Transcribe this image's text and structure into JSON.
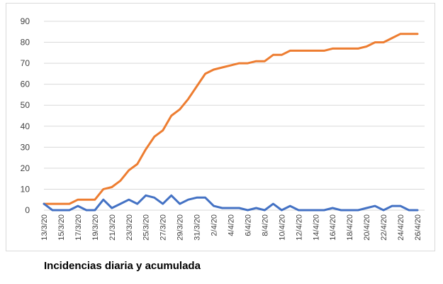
{
  "caption": "Incidencias diaria y acumulada",
  "chart_data": {
    "type": "line",
    "x": [
      "13/3/20",
      "14/3/20",
      "15/3/20",
      "16/3/20",
      "17/3/20",
      "18/3/20",
      "19/3/20",
      "20/3/20",
      "21/3/20",
      "22/3/20",
      "23/3/20",
      "24/3/20",
      "25/3/20",
      "26/3/20",
      "27/3/20",
      "28/3/20",
      "29/3/20",
      "30/3/20",
      "31/3/20",
      "1/4/20",
      "2/4/20",
      "3/4/20",
      "4/4/20",
      "5/4/20",
      "6/4/20",
      "7/4/20",
      "8/4/20",
      "9/4/20",
      "10/4/20",
      "11/4/20",
      "12/4/20",
      "13/4/20",
      "14/4/20",
      "15/4/20",
      "16/4/20",
      "17/4/20",
      "18/4/20",
      "19/4/20",
      "20/4/20",
      "21/4/20",
      "22/4/20",
      "23/4/20",
      "24/4/20",
      "25/4/20",
      "26/4/20"
    ],
    "tick_labels": [
      "13/3/20",
      "15/3/20",
      "17/3/20",
      "19/3/20",
      "21/3/20",
      "23/3/20",
      "25/3/20",
      "27/3/20",
      "29/3/20",
      "31/3/20",
      "2/4/20",
      "4/4/20",
      "6/4/20",
      "8/4/20",
      "10/4/20",
      "12/4/20",
      "14/4/20",
      "16/4/20",
      "18/4/20",
      "20/4/20",
      "22/4/20",
      "24/4/20",
      "26/4/20"
    ],
    "series": [
      {
        "color": "#ed7d31",
        "values": [
          3,
          3,
          3,
          3,
          5,
          5,
          5,
          10,
          11,
          14,
          19,
          22,
          29,
          35,
          38,
          45,
          48,
          53,
          59,
          65,
          67,
          68,
          69,
          70,
          70,
          71,
          71,
          74,
          74,
          76,
          76,
          76,
          76,
          76,
          77,
          77,
          77,
          77,
          78,
          80,
          80,
          82,
          84,
          84,
          84
        ]
      },
      {
        "color": "#4472c4",
        "values": [
          3,
          0,
          0,
          0,
          2,
          0,
          0,
          5,
          1,
          3,
          5,
          3,
          7,
          6,
          3,
          7,
          3,
          5,
          6,
          6,
          2,
          1,
          1,
          1,
          0,
          1,
          0,
          3,
          0,
          2,
          0,
          0,
          0,
          0,
          1,
          0,
          0,
          0,
          1,
          2,
          0,
          2,
          2,
          0,
          0
        ]
      }
    ],
    "ylim": [
      0,
      90
    ],
    "yticks": [
      0,
      10,
      20,
      30,
      40,
      50,
      60,
      70,
      80,
      90
    ],
    "grid": true,
    "gridline_color": "#d9d9d9",
    "title": "",
    "xlabel": "",
    "ylabel": ""
  }
}
